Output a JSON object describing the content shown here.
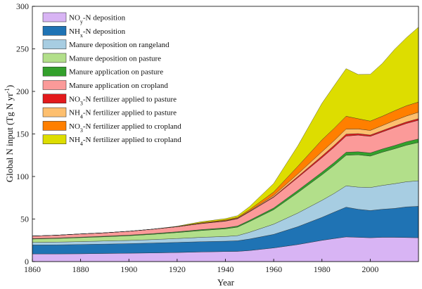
{
  "chart_data": {
    "type": "area",
    "stacked": true,
    "xlabel": "Year",
    "ylabel": "Global N input (Tg N yr-1)",
    "xlim": [
      1860,
      2020
    ],
    "ylim": [
      0,
      300
    ],
    "x_ticks": [
      "1860",
      "1880",
      "1900",
      "1920",
      "1940",
      "1960",
      "1980",
      "2000"
    ],
    "y_ticks": [
      "0",
      "50",
      "100",
      "150",
      "200",
      "250",
      "300"
    ],
    "grid": false,
    "legend_position": "top-left",
    "x": [
      1860,
      1870,
      1880,
      1890,
      1900,
      1910,
      1920,
      1925,
      1930,
      1940,
      1945,
      1950,
      1960,
      1970,
      1980,
      1985,
      1990,
      1995,
      2000,
      2005,
      2010,
      2015,
      2020
    ],
    "series": [
      {
        "name": "NOy-N deposition",
        "color": "#d8b4f4",
        "values": [
          9,
          9,
          9.2,
          9.5,
          9.8,
          10.2,
          10.7,
          11,
          11.3,
          11.8,
          12,
          13,
          16,
          20,
          25,
          27,
          29,
          28.5,
          28,
          28.5,
          28.5,
          28.3,
          28
        ]
      },
      {
        "name": "NHx-N deposition",
        "color": "#1f73b4",
        "values": [
          10.5,
          10.7,
          10.9,
          11.1,
          11.3,
          11.6,
          11.9,
          12,
          12.1,
          12.2,
          12.5,
          13.5,
          16,
          21,
          27,
          31,
          35,
          33,
          32,
          33,
          34,
          36,
          37
        ]
      },
      {
        "name": "Manure deposition on rangeland",
        "color": "#a7cde2",
        "values": [
          3,
          3.2,
          3.4,
          3.6,
          3.8,
          4.1,
          4.5,
          4.8,
          5.1,
          5.5,
          6,
          8,
          12,
          16,
          20,
          22,
          25,
          26,
          27,
          28,
          29,
          29.5,
          30
        ]
      },
      {
        "name": "Manure deposition on pasture",
        "color": "#b2df8a",
        "values": [
          4,
          4.3,
          4.7,
          5,
          5.5,
          6.2,
          7,
          7.5,
          8,
          9,
          10,
          12.5,
          17,
          24,
          30,
          33,
          36,
          38,
          37,
          39,
          41,
          43,
          45
        ]
      },
      {
        "name": "Manure application on pasture",
        "color": "#33a02c",
        "values": [
          0.5,
          0.5,
          0.6,
          0.6,
          0.7,
          0.8,
          0.9,
          1,
          1.1,
          1.2,
          1.3,
          1.5,
          2,
          2.6,
          3.1,
          3.3,
          3.5,
          3.6,
          3.7,
          3.8,
          3.9,
          4,
          4.1
        ]
      },
      {
        "name": "Manure application on cropland",
        "color": "#fb9a99",
        "values": [
          3,
          3.3,
          3.7,
          4,
          4.5,
          5.2,
          6,
          6.5,
          7,
          7.8,
          8.5,
          10,
          12.5,
          15,
          17,
          18,
          19,
          19.5,
          19.5,
          20,
          21,
          21.5,
          22
        ]
      },
      {
        "name": "NO3-N fertilizer applied to pasture",
        "color": "#e31a1c",
        "values": [
          0,
          0,
          0,
          0,
          0,
          0,
          0,
          0.1,
          0.2,
          0.2,
          0.3,
          0.4,
          0.8,
          1.4,
          2,
          2.2,
          2.3,
          1.8,
          1.6,
          1.7,
          1.8,
          1.8,
          1.9
        ]
      },
      {
        "name": "NH4-N fertilizer applied to pasture",
        "color": "#fdbf6f",
        "values": [
          0,
          0,
          0,
          0,
          0,
          0,
          0,
          0.1,
          0.2,
          0.3,
          0.4,
          0.6,
          1.5,
          3,
          5,
          5.5,
          6,
          5.5,
          5.3,
          5.8,
          6.5,
          7,
          7.5
        ]
      },
      {
        "name": "NO3-N fertilizer applied to cropland",
        "color": "#ff7f00",
        "values": [
          0,
          0,
          0,
          0,
          0,
          0,
          0.2,
          0.5,
          0.7,
          0.9,
          1,
          1.6,
          4,
          9,
          14,
          14.5,
          15,
          12,
          11,
          11,
          11.5,
          12,
          12
        ]
      },
      {
        "name": "NH4-N fertilizer applied to cropland",
        "color": "#dddd00",
        "values": [
          0,
          0,
          0,
          0,
          0,
          0,
          0.4,
          0.8,
          1.2,
          1.6,
          2,
          3.5,
          10,
          24,
          43,
          50,
          56,
          52,
          55,
          62,
          72,
          80,
          88
        ]
      }
    ]
  },
  "legend": {
    "entries": [
      {
        "pre": "NO",
        "sub": "y",
        "post": "-N deposition",
        "color": "#d8b4f4"
      },
      {
        "pre": "NH",
        "sub": "x",
        "post": "-N deposition",
        "color": "#1f73b4"
      },
      {
        "pre": "Manure deposition on rangeland",
        "sub": "",
        "post": "",
        "color": "#a7cde2"
      },
      {
        "pre": "Manure deposition on pasture",
        "sub": "",
        "post": "",
        "color": "#b2df8a"
      },
      {
        "pre": "Manure application on pasture",
        "sub": "",
        "post": "",
        "color": "#33a02c"
      },
      {
        "pre": "Manure application on cropland",
        "sub": "",
        "post": "",
        "color": "#fb9a99"
      },
      {
        "pre": "NO",
        "sub": "3",
        "post": "-N fertilizer applied to pasture",
        "color": "#e31a1c"
      },
      {
        "pre": "NH",
        "sub": "4",
        "post": "-N fertilizer applied to pasture",
        "color": "#fdbf6f"
      },
      {
        "pre": "NO",
        "sub": "3",
        "post": "-N fertilizer applied to cropland",
        "color": "#ff7f00"
      },
      {
        "pre": "NH",
        "sub": "4",
        "post": "-N fertilizer applied to cropland",
        "color": "#dddd00"
      }
    ]
  },
  "axes": {
    "xlabel": "Year",
    "ylabel_main": "Global N input (Tg N yr",
    "ylabel_sup": "-1",
    "ylabel_close": ")"
  }
}
